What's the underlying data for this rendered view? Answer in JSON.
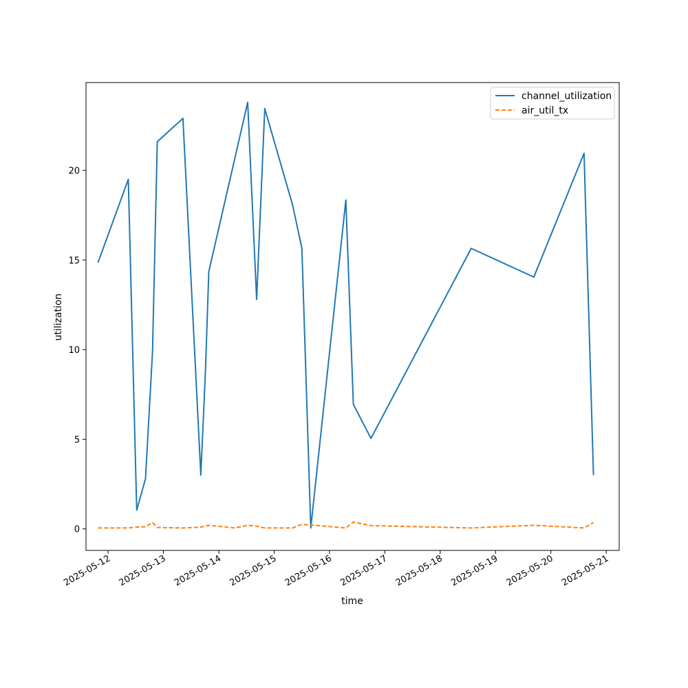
{
  "chart_data": {
    "type": "line",
    "xlabel": "time",
    "ylabel": "utilization",
    "x_tick_labels": [
      "2025-05-12",
      "2025-05-13",
      "2025-05-14",
      "2025-05-15",
      "2025-05-16",
      "2025-05-17",
      "2025-05-18",
      "2025-05-19",
      "2025-05-20",
      "2025-05-21"
    ],
    "y_ticks": [
      0,
      5,
      10,
      15,
      20
    ],
    "xlim": [
      "2025-05-11 14:24",
      "2025-05-21 05:38"
    ],
    "ylim": [
      -1.2,
      24.9
    ],
    "grid": false,
    "legend_position": "top-right",
    "series": [
      {
        "name": "channel_utilization",
        "color": "#1f77b4",
        "style": "solid",
        "points": [
          [
            "2025-05-11 19:36",
            14.85
          ],
          [
            "2025-05-12 08:45",
            19.5
          ],
          [
            "2025-05-12 12:23",
            1.05
          ],
          [
            "2025-05-12 16:12",
            2.8
          ],
          [
            "2025-05-12 19:15",
            9.9
          ],
          [
            "2025-05-12 21:18",
            21.6
          ],
          [
            "2025-05-13 08:27",
            22.9
          ],
          [
            "2025-05-13 16:12",
            3.0
          ],
          [
            "2025-05-13 18:12",
            8.8
          ],
          [
            "2025-05-13 19:40",
            14.35
          ],
          [
            "2025-05-14 12:31",
            23.8
          ],
          [
            "2025-05-14 16:24",
            12.8
          ],
          [
            "2025-05-14 19:55",
            23.45
          ],
          [
            "2025-05-15 07:57",
            18.1
          ],
          [
            "2025-05-15 12:02",
            15.65
          ],
          [
            "2025-05-15 15:52",
            0.05
          ],
          [
            "2025-05-16 07:05",
            18.35
          ],
          [
            "2025-05-16 10:20",
            6.95
          ],
          [
            "2025-05-16 17:59",
            5.05
          ],
          [
            "2025-05-18 13:27",
            15.65
          ],
          [
            "2025-05-19 16:36",
            14.05
          ],
          [
            "2025-05-20 14:24",
            20.95
          ],
          [
            "2025-05-20 18:28",
            3.0
          ]
        ]
      },
      {
        "name": "air_util_tx",
        "color": "#ff7f0e",
        "style": "dashed",
        "points": [
          [
            "2025-05-11 19:36",
            0.05
          ],
          [
            "2025-05-12 08:45",
            0.05
          ],
          [
            "2025-05-12 12:23",
            0.1
          ],
          [
            "2025-05-12 16:12",
            0.12
          ],
          [
            "2025-05-12 19:15",
            0.35
          ],
          [
            "2025-05-12 21:18",
            0.08
          ],
          [
            "2025-05-13 08:27",
            0.05
          ],
          [
            "2025-05-13 16:12",
            0.1
          ],
          [
            "2025-05-13 19:40",
            0.2
          ],
          [
            "2025-05-14 07:05",
            0.05
          ],
          [
            "2025-05-14 12:31",
            0.2
          ],
          [
            "2025-05-14 16:24",
            0.15
          ],
          [
            "2025-05-14 19:55",
            0.05
          ],
          [
            "2025-05-15 07:57",
            0.05
          ],
          [
            "2025-05-15 12:02",
            0.25
          ],
          [
            "2025-05-15 15:52",
            0.22
          ],
          [
            "2025-05-16 07:05",
            0.05
          ],
          [
            "2025-05-16 10:20",
            0.38
          ],
          [
            "2025-05-16 17:59",
            0.18
          ],
          [
            "2025-05-18 13:27",
            0.05
          ],
          [
            "2025-05-19 16:36",
            0.2
          ],
          [
            "2025-05-20 14:24",
            0.05
          ],
          [
            "2025-05-20 18:28",
            0.35
          ]
        ]
      }
    ]
  }
}
